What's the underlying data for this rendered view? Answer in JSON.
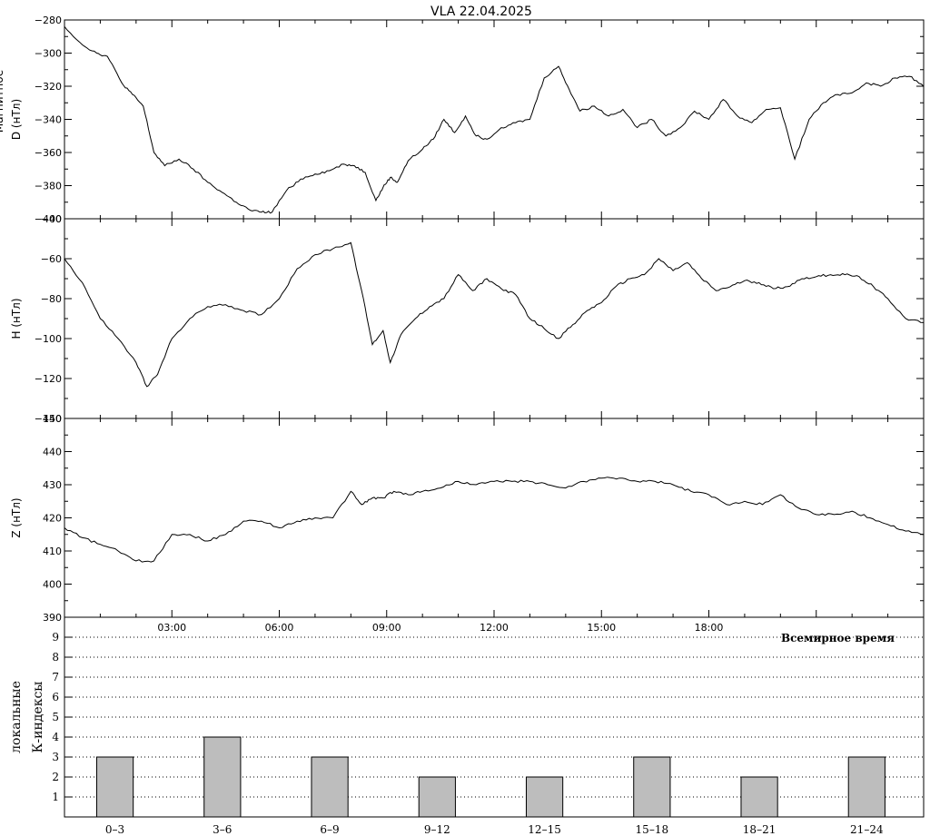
{
  "title": "VLA   22.04.2025",
  "colors": {
    "line": "#000000",
    "bar_fill": "#bdbdbd",
    "bar_stroke": "#000000",
    "grid": "#000000"
  },
  "chart_data": [
    {
      "type": "line",
      "ylabel": "D (нТл)",
      "ylabel_cut": "Магнитное",
      "ylim": [
        -400,
        -280
      ],
      "yticks": [
        -400,
        -380,
        -360,
        -340,
        -320,
        -300,
        -280
      ],
      "xlim": [
        0,
        24
      ],
      "x": [
        0,
        0.5,
        0.9,
        1.2,
        1.6,
        1.9,
        2.2,
        2.5,
        2.8,
        3.2,
        3.6,
        4.0,
        4.4,
        4.8,
        5.2,
        5.5,
        5.8,
        6.2,
        6.6,
        7.0,
        7.4,
        7.8,
        8.1,
        8.4,
        8.7,
        8.9,
        9.1,
        9.3,
        9.6,
        10.0,
        10.3,
        10.6,
        10.9,
        11.2,
        11.5,
        11.8,
        12.2,
        12.6,
        13.0,
        13.4,
        13.8,
        14.1,
        14.4,
        14.8,
        15.2,
        15.6,
        16.0,
        16.4,
        16.8,
        17.2,
        17.6,
        18.0,
        18.4,
        18.8,
        19.2,
        19.6,
        20.0,
        20.4,
        20.8,
        21.2,
        21.6,
        22.0,
        22.4,
        22.8,
        23.2,
        23.6,
        24.0
      ],
      "y": [
        -284,
        -295,
        -300,
        -302,
        -318,
        -325,
        -332,
        -360,
        -368,
        -364,
        -370,
        -378,
        -384,
        -390,
        -395,
        -396,
        -396,
        -383,
        -376,
        -373,
        -371,
        -367,
        -368,
        -372,
        -389,
        -381,
        -375,
        -378,
        -365,
        -358,
        -352,
        -340,
        -348,
        -338,
        -350,
        -352,
        -345,
        -342,
        -340,
        -315,
        -308,
        -322,
        -335,
        -332,
        -338,
        -334,
        -345,
        -340,
        -350,
        -345,
        -335,
        -340,
        -328,
        -338,
        -342,
        -334,
        -333,
        -364,
        -340,
        -330,
        -325,
        -324,
        -318,
        -320,
        -315,
        -314,
        -320
      ]
    },
    {
      "type": "line",
      "ylabel": "H (нТл)",
      "ylim": [
        -140,
        -40
      ],
      "yticks": [
        -140,
        -120,
        -100,
        -80,
        -60,
        -40
      ],
      "xlim": [
        0,
        24
      ],
      "x": [
        0,
        0.5,
        1.0,
        1.5,
        2.0,
        2.3,
        2.6,
        3.0,
        3.5,
        4.0,
        4.5,
        5.0,
        5.5,
        6.0,
        6.5,
        7.0,
        7.5,
        8.0,
        8.3,
        8.6,
        8.9,
        9.1,
        9.4,
        9.8,
        10.2,
        10.6,
        11.0,
        11.4,
        11.8,
        12.2,
        12.6,
        13.0,
        13.4,
        13.8,
        14.2,
        14.6,
        15.0,
        15.4,
        15.8,
        16.2,
        16.6,
        17.0,
        17.4,
        17.8,
        18.2,
        18.6,
        19.0,
        19.4,
        19.8,
        20.2,
        20.6,
        21.0,
        21.4,
        21.8,
        22.2,
        22.6,
        23.0,
        23.5,
        24.0
      ],
      "y": [
        -60,
        -72,
        -90,
        -100,
        -112,
        -124,
        -118,
        -100,
        -90,
        -84,
        -83,
        -86,
        -88,
        -80,
        -65,
        -58,
        -55,
        -52,
        -76,
        -103,
        -96,
        -112,
        -98,
        -90,
        -84,
        -80,
        -68,
        -76,
        -70,
        -75,
        -78,
        -90,
        -95,
        -100,
        -93,
        -86,
        -82,
        -74,
        -70,
        -68,
        -60,
        -66,
        -62,
        -70,
        -76,
        -74,
        -71,
        -72,
        -75,
        -74,
        -70,
        -69,
        -68,
        -68,
        -69,
        -74,
        -80,
        -90,
        -92
      ]
    },
    {
      "type": "line",
      "ylabel": "Z (нТл)",
      "ylim": [
        390,
        450
      ],
      "yticks": [
        390,
        400,
        410,
        420,
        430,
        440,
        450
      ],
      "xlim": [
        0,
        24
      ],
      "x": [
        0,
        0.5,
        1.0,
        1.5,
        2.0,
        2.5,
        3.0,
        3.5,
        4.0,
        4.5,
        5.0,
        5.5,
        6.0,
        6.5,
        7.0,
        7.5,
        8.0,
        8.3,
        8.6,
        8.9,
        9.2,
        9.6,
        10.0,
        10.5,
        11.0,
        11.5,
        12.0,
        12.5,
        13.0,
        13.5,
        14.0,
        14.5,
        15.0,
        15.5,
        16.0,
        16.5,
        17.0,
        17.5,
        18.0,
        18.5,
        19.0,
        19.5,
        20.0,
        20.5,
        21.0,
        21.5,
        22.0,
        22.5,
        23.0,
        23.5,
        24.0
      ],
      "y": [
        417,
        414,
        412,
        410,
        407,
        407,
        415,
        415,
        413,
        415,
        419,
        419,
        417,
        419,
        420,
        420,
        428,
        424,
        426,
        426,
        428,
        427,
        428,
        429,
        431,
        430,
        431,
        431,
        431,
        430,
        429,
        431,
        432,
        432,
        431,
        431,
        430,
        428,
        427,
        424,
        425,
        424,
        427,
        423,
        421,
        421,
        422,
        420,
        418,
        416,
        415
      ]
    },
    {
      "type": "bar",
      "ylabel": "локальные К-индексы",
      "xlabel": "Всемирное время",
      "ylim": [
        0,
        10
      ],
      "yticks": [
        1,
        2,
        3,
        4,
        5,
        6,
        7,
        8,
        9
      ],
      "grid": true,
      "categories": [
        "0–3",
        "3–6",
        "6–9",
        "9–12",
        "12–15",
        "15–18",
        "18–21",
        "21–24"
      ],
      "values": [
        3,
        4,
        3,
        2,
        2,
        3,
        2,
        3
      ]
    }
  ],
  "time_axis": {
    "tick_labels": [
      "03:00",
      "06:00",
      "09:00",
      "12:00",
      "15:00",
      "18:00"
    ],
    "tick_hours": [
      3,
      6,
      9,
      12,
      15,
      18
    ]
  }
}
